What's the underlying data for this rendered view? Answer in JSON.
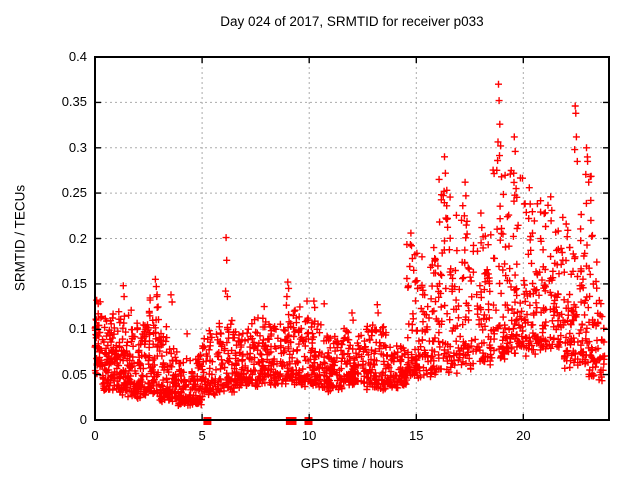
{
  "title": "Day 024 of 2017, SRMTID for receiver p033",
  "axes": {
    "x": {
      "label": "GPS time / hours",
      "tick_labels": [
        "0",
        "5",
        "10",
        "15",
        "20"
      ],
      "tick_values": [
        0,
        5,
        10,
        15,
        20
      ]
    },
    "y": {
      "label": "SRMTID / TECUs",
      "tick_labels": [
        "0",
        "0.05",
        "0.1",
        "0.15",
        "0.2",
        "0.25",
        "0.3",
        "0.35",
        "0.4"
      ],
      "tick_values": [
        0,
        0.05,
        0.1,
        0.15,
        0.2,
        0.25,
        0.3,
        0.35,
        0.4
      ]
    }
  },
  "colors": {
    "marker": "#ff0000",
    "grid": "#ababab",
    "border": "#000000",
    "text": "#000000",
    "background": "#ffffff"
  },
  "chart_data": {
    "type": "scatter",
    "title": "Day 024 of 2017, SRMTID for receiver p033",
    "xlabel": "GPS time / hours",
    "ylabel": "SRMTID / TECUs",
    "xlim": [
      0,
      24
    ],
    "ylim": [
      0,
      0.4
    ],
    "grid": true,
    "legend": "none",
    "marker": "plus",
    "marker_color": "#ff0000",
    "series_name": "SRMTID",
    "seed": 42,
    "cloud_segments": [
      [
        0.0,
        0.35,
        45,
        0.048,
        0.132,
        1.5
      ],
      [
        0.35,
        1.0,
        85,
        0.032,
        0.12,
        1.9
      ],
      [
        1.0,
        1.7,
        95,
        0.025,
        0.125,
        2.0
      ],
      [
        1.7,
        2.4,
        90,
        0.022,
        0.11,
        2.0
      ],
      [
        2.4,
        3.0,
        75,
        0.025,
        0.14,
        2.2
      ],
      [
        3.0,
        3.8,
        95,
        0.02,
        0.105,
        2.3
      ],
      [
        3.8,
        5.0,
        130,
        0.015,
        0.078,
        2.1
      ],
      [
        5.0,
        5.7,
        60,
        0.025,
        0.1,
        2.0
      ],
      [
        5.7,
        6.5,
        70,
        0.03,
        0.115,
        2.1
      ],
      [
        6.5,
        7.6,
        105,
        0.035,
        0.112,
        2.0
      ],
      [
        7.6,
        8.6,
        95,
        0.038,
        0.115,
        2.0
      ],
      [
        8.6,
        9.6,
        95,
        0.038,
        0.13,
        2.1
      ],
      [
        9.6,
        10.6,
        95,
        0.035,
        0.12,
        2.0
      ],
      [
        10.6,
        11.6,
        95,
        0.03,
        0.095,
        1.9
      ],
      [
        11.6,
        12.6,
        95,
        0.038,
        0.105,
        2.0
      ],
      [
        12.6,
        13.6,
        90,
        0.032,
        0.11,
        2.1
      ],
      [
        13.6,
        14.55,
        85,
        0.035,
        0.085,
        1.9
      ],
      [
        14.55,
        15.25,
        65,
        0.045,
        0.2,
        2.5
      ],
      [
        15.25,
        16.05,
        70,
        0.045,
        0.185,
        2.5
      ],
      [
        16.05,
        16.75,
        62,
        0.05,
        0.28,
        2.7
      ],
      [
        16.75,
        17.55,
        66,
        0.05,
        0.25,
        2.6
      ],
      [
        17.55,
        18.55,
        78,
        0.06,
        0.22,
        2.3
      ],
      [
        18.55,
        19.25,
        62,
        0.065,
        0.34,
        2.7
      ],
      [
        19.25,
        20.05,
        72,
        0.07,
        0.29,
        2.5
      ],
      [
        20.05,
        20.85,
        72,
        0.07,
        0.25,
        2.3
      ],
      [
        20.85,
        21.85,
        85,
        0.07,
        0.24,
        2.2
      ],
      [
        21.85,
        22.75,
        85,
        0.055,
        0.23,
        2.1
      ],
      [
        22.75,
        23.45,
        72,
        0.045,
        0.3,
        2.4
      ],
      [
        23.45,
        23.8,
        26,
        0.04,
        0.14,
        1.8
      ]
    ],
    "peak_points": [
      [
        0.08,
        0.132
      ],
      [
        0.15,
        0.128
      ],
      [
        1.32,
        0.148
      ],
      [
        1.36,
        0.136
      ],
      [
        2.82,
        0.155
      ],
      [
        2.86,
        0.147
      ],
      [
        2.9,
        0.138
      ],
      [
        3.55,
        0.138
      ],
      [
        3.6,
        0.13
      ],
      [
        4.3,
        0.095
      ],
      [
        6.1,
        0.142
      ],
      [
        6.12,
        0.201
      ],
      [
        6.15,
        0.176
      ],
      [
        6.18,
        0.136
      ],
      [
        7.9,
        0.125
      ],
      [
        8.96,
        0.136
      ],
      [
        9.0,
        0.152
      ],
      [
        9.04,
        0.145
      ],
      [
        9.9,
        0.131
      ],
      [
        10.22,
        0.131
      ],
      [
        10.26,
        0.124
      ],
      [
        10.7,
        0.128
      ],
      [
        12.0,
        0.118
      ],
      [
        12.05,
        0.11
      ],
      [
        13.18,
        0.127
      ],
      [
        13.22,
        0.118
      ],
      [
        14.75,
        0.206
      ],
      [
        14.78,
        0.192
      ],
      [
        14.82,
        0.178
      ],
      [
        14.88,
        0.165
      ],
      [
        14.95,
        0.152
      ],
      [
        15.82,
        0.19
      ],
      [
        15.86,
        0.178
      ],
      [
        15.9,
        0.162
      ],
      [
        16.3,
        0.252
      ],
      [
        16.32,
        0.29
      ],
      [
        16.36,
        0.272
      ],
      [
        16.42,
        0.236
      ],
      [
        16.46,
        0.222
      ],
      [
        17.25,
        0.225
      ],
      [
        17.28,
        0.262
      ],
      [
        17.32,
        0.247
      ],
      [
        18.02,
        0.228
      ],
      [
        18.06,
        0.212
      ],
      [
        18.8,
        0.286
      ],
      [
        18.84,
        0.37
      ],
      [
        18.87,
        0.352
      ],
      [
        18.9,
        0.326
      ],
      [
        18.94,
        0.302
      ],
      [
        18.98,
        0.268
      ],
      [
        19.55,
        0.272
      ],
      [
        19.58,
        0.312
      ],
      [
        19.62,
        0.296
      ],
      [
        19.66,
        0.255
      ],
      [
        20.25,
        0.222
      ],
      [
        20.28,
        0.256
      ],
      [
        20.32,
        0.238
      ],
      [
        21.28,
        0.246
      ],
      [
        21.33,
        0.231
      ],
      [
        22.0,
        0.216
      ],
      [
        22.05,
        0.202
      ],
      [
        22.4,
        0.298
      ],
      [
        22.42,
        0.346
      ],
      [
        22.45,
        0.338
      ],
      [
        22.48,
        0.312
      ],
      [
        22.52,
        0.285
      ],
      [
        22.95,
        0.3
      ],
      [
        23.0,
        0.285
      ],
      [
        23.05,
        0.262
      ],
      [
        23.15,
        0.242
      ]
    ],
    "zero_flag_squares_x": [
      5.25,
      9.1,
      9.22,
      9.97
    ]
  }
}
